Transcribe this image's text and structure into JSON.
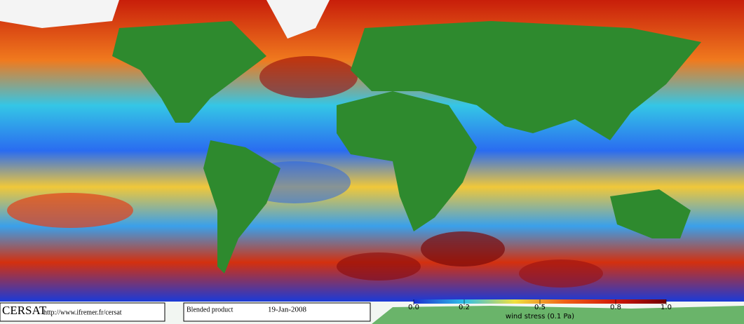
{
  "logo": "CERSAT",
  "url": "http://www.ifremer.fr/cersat",
  "product": "Blended product",
  "date": "19-Jan-2008",
  "colorbar": {
    "label": "wind stress (0.1 Pa)",
    "range": [
      0,
      1
    ],
    "ticks": [
      {
        "value": 0,
        "label": "0.0"
      },
      0.2,
      0.5,
      0.8,
      {
        "value": 1,
        "label": "1.0"
      }
    ]
  }
}
